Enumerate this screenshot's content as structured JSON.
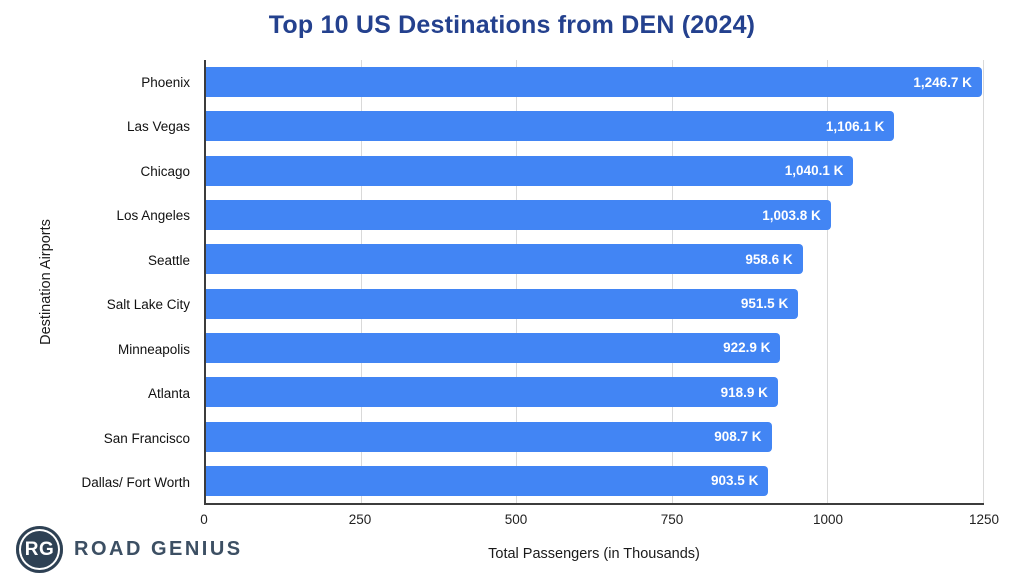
{
  "title": "Top 10 US Destinations from DEN (2024)",
  "colors": {
    "bar": "#4285f4",
    "title": "#24418e",
    "gridline": "#d9d9d9",
    "axis": "#3c3c3c",
    "value_label": "#ffffff",
    "logo": "#2e4154"
  },
  "chart_data": {
    "type": "bar",
    "orientation": "horizontal",
    "title": "Top 10 US Destinations from DEN (2024)",
    "xlabel": "Total Passengers (in Thousands)",
    "ylabel": "Destination Airports",
    "categories": [
      "Phoenix",
      "Las Vegas",
      "Chicago",
      "Los Angeles",
      "Seattle",
      "Salt Lake City",
      "Minneapolis",
      "Atlanta",
      "San Francisco",
      "Dallas/ Fort Worth"
    ],
    "values": [
      1246.7,
      1106.1,
      1040.1,
      1003.8,
      958.6,
      951.5,
      922.9,
      918.9,
      908.7,
      903.5
    ],
    "value_labels": [
      "1,246.7 K",
      "1,106.1 K",
      "1,040.1 K",
      "1,003.8 K",
      "958.6 K",
      "951.5 K",
      "922.9 K",
      "918.9 K",
      "908.7 K",
      "903.5 K"
    ],
    "xlim": [
      0,
      1250
    ],
    "xticks": [
      0,
      250,
      500,
      750,
      1000,
      1250
    ],
    "xtick_labels": [
      "0",
      "250",
      "500",
      "750",
      "1000",
      "1250"
    ],
    "grid": true,
    "legend": false
  },
  "footer": {
    "logo_monogram": "RG",
    "logo_text": "ROAD GENIUS"
  }
}
